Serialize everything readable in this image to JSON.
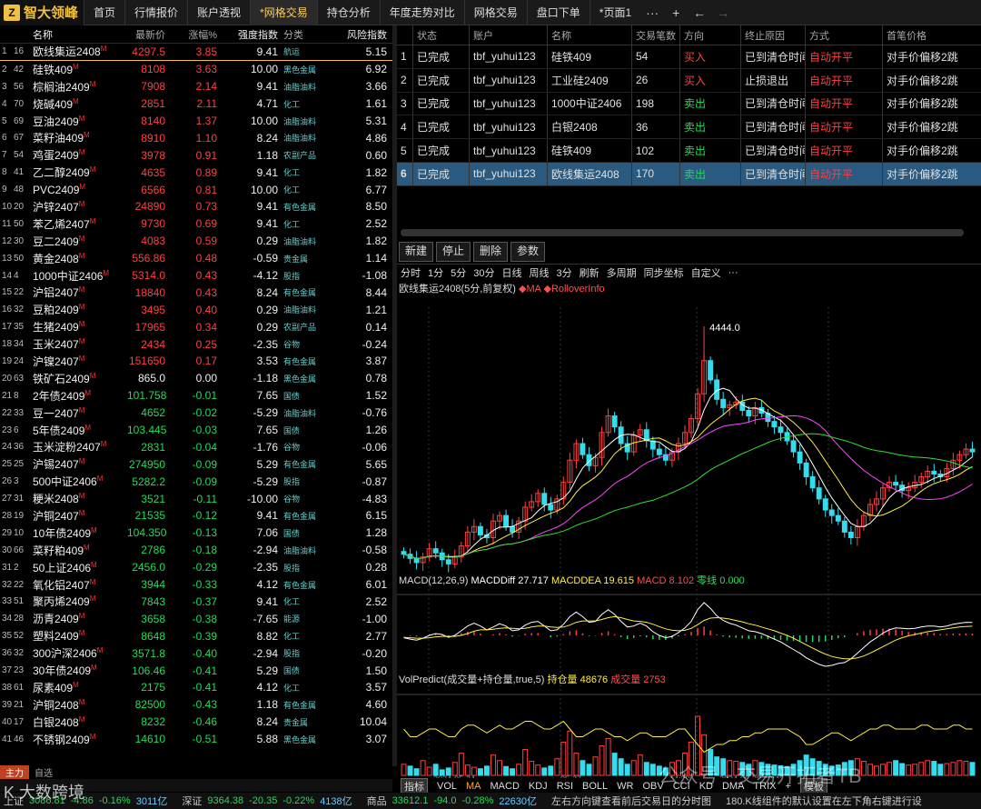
{
  "app": {
    "logo_text": "智大领峰",
    "logo_mark": "Z"
  },
  "tabs": [
    {
      "label": "首页"
    },
    {
      "label": "行情报价"
    },
    {
      "label": "账户透视"
    },
    {
      "label": "*网格交易",
      "active": true
    },
    {
      "label": "持仓分析"
    },
    {
      "label": "年度走势对比"
    },
    {
      "label": "网格交易"
    },
    {
      "label": "盘口下单"
    },
    {
      "label": "*页面1"
    }
  ],
  "tab_controls": {
    "more": "···",
    "add": "+",
    "back": "←",
    "forward": "→"
  },
  "quote_list": {
    "headers": {
      "name": "名称",
      "price": "最新价",
      "change": "涨幅%",
      "strength": "强度指数",
      "category": "分类",
      "risk": "风险指数"
    },
    "rows": [
      {
        "idx": "1",
        "code": "16",
        "name": "欧线集运2408",
        "m": "M",
        "price": "4297.5",
        "change": "3.85",
        "strength": "9.41",
        "category": "航运",
        "risk": "5.15",
        "dir": "up"
      },
      {
        "idx": "2",
        "code": "42",
        "name": "硅铁409",
        "m": "M",
        "price": "8108",
        "change": "3.63",
        "strength": "10.00",
        "category": "黑色金属",
        "risk": "6.92",
        "dir": "up"
      },
      {
        "idx": "3",
        "code": "56",
        "name": "棕榈油2409",
        "m": "M",
        "price": "7908",
        "change": "2.14",
        "strength": "9.41",
        "category": "油脂油料",
        "risk": "3.66",
        "dir": "up"
      },
      {
        "idx": "4",
        "code": "70",
        "name": "烧碱409",
        "m": "M",
        "price": "2851",
        "change": "2.11",
        "strength": "4.71",
        "category": "化工",
        "risk": "1.61",
        "dir": "up"
      },
      {
        "idx": "5",
        "code": "69",
        "name": "豆油2409",
        "m": "M",
        "price": "8140",
        "change": "1.37",
        "strength": "10.00",
        "category": "油脂油料",
        "risk": "5.31",
        "dir": "up"
      },
      {
        "idx": "6",
        "code": "67",
        "name": "菜籽油409",
        "m": "M",
        "price": "8910",
        "change": "1.10",
        "strength": "8.24",
        "category": "油脂油料",
        "risk": "4.86",
        "dir": "up"
      },
      {
        "idx": "7",
        "code": "54",
        "name": "鸡蛋2409",
        "m": "M",
        "price": "3978",
        "change": "0.91",
        "strength": "1.18",
        "category": "农副产品",
        "risk": "0.60",
        "dir": "up"
      },
      {
        "idx": "8",
        "code": "41",
        "name": "乙二醇2409",
        "m": "M",
        "price": "4635",
        "change": "0.89",
        "strength": "9.41",
        "category": "化工",
        "risk": "1.82",
        "dir": "up"
      },
      {
        "idx": "9",
        "code": "48",
        "name": "PVC2409",
        "m": "M",
        "price": "6566",
        "change": "0.81",
        "strength": "10.00",
        "category": "化工",
        "risk": "6.77",
        "dir": "up"
      },
      {
        "idx": "10",
        "code": "20",
        "name": "沪锌2407",
        "m": "M",
        "price": "24890",
        "change": "0.73",
        "strength": "9.41",
        "category": "有色金属",
        "risk": "8.50",
        "dir": "up"
      },
      {
        "idx": "11",
        "code": "50",
        "name": "苯乙烯2407",
        "m": "M",
        "price": "9730",
        "change": "0.69",
        "strength": "9.41",
        "category": "化工",
        "risk": "2.52",
        "dir": "up"
      },
      {
        "idx": "12",
        "code": "30",
        "name": "豆二2409",
        "m": "M",
        "price": "4083",
        "change": "0.59",
        "strength": "0.29",
        "category": "油脂油料",
        "risk": "1.82",
        "dir": "up"
      },
      {
        "idx": "13",
        "code": "50",
        "name": "黄金2408",
        "m": "M",
        "price": "556.86",
        "change": "0.48",
        "strength": "-0.59",
        "category": "贵金属",
        "risk": "1.14",
        "dir": "up"
      },
      {
        "idx": "14",
        "code": "4",
        "name": "1000中证2406",
        "m": "M",
        "price": "5314.0",
        "change": "0.43",
        "strength": "-4.12",
        "category": "股指",
        "risk": "-1.08",
        "dir": "up"
      },
      {
        "idx": "15",
        "code": "22",
        "name": "沪铝2407",
        "m": "M",
        "price": "18840",
        "change": "0.43",
        "strength": "8.24",
        "category": "有色金属",
        "risk": "8.44",
        "dir": "up"
      },
      {
        "idx": "16",
        "code": "32",
        "name": "豆粕2409",
        "m": "M",
        "price": "3495",
        "change": "0.40",
        "strength": "0.29",
        "category": "油脂油料",
        "risk": "1.21",
        "dir": "up"
      },
      {
        "idx": "17",
        "code": "35",
        "name": "生猪2409",
        "m": "M",
        "price": "17965",
        "change": "0.34",
        "strength": "0.29",
        "category": "农副产品",
        "risk": "0.14",
        "dir": "up"
      },
      {
        "idx": "18",
        "code": "34",
        "name": "玉米2407",
        "m": "M",
        "price": "2434",
        "change": "0.25",
        "strength": "-2.35",
        "category": "谷物",
        "risk": "-0.24",
        "dir": "up"
      },
      {
        "idx": "19",
        "code": "24",
        "name": "沪镍2407",
        "m": "M",
        "price": "151650",
        "change": "0.17",
        "strength": "3.53",
        "category": "有色金属",
        "risk": "3.87",
        "dir": "up"
      },
      {
        "idx": "20",
        "code": "63",
        "name": "铁矿石2409",
        "m": "M",
        "price": "865.0",
        "change": "0.00",
        "strength": "-1.18",
        "category": "黑色金属",
        "risk": "0.78",
        "dir": "zero"
      },
      {
        "idx": "21",
        "code": "8",
        "name": "2年债2409",
        "m": "M",
        "price": "101.758",
        "change": "-0.01",
        "strength": "7.65",
        "category": "国债",
        "risk": "1.52",
        "dir": "dn"
      },
      {
        "idx": "22",
        "code": "33",
        "name": "豆一2407",
        "m": "M",
        "price": "4652",
        "change": "-0.02",
        "strength": "-5.29",
        "category": "油脂油料",
        "risk": "-0.76",
        "dir": "dn"
      },
      {
        "idx": "23",
        "code": "6",
        "name": "5年债2409",
        "m": "M",
        "price": "103.445",
        "change": "-0.03",
        "strength": "7.65",
        "category": "国债",
        "risk": "1.26",
        "dir": "dn"
      },
      {
        "idx": "24",
        "code": "36",
        "name": "玉米淀粉2407",
        "m": "M",
        "price": "2831",
        "change": "-0.04",
        "strength": "-1.76",
        "category": "谷物",
        "risk": "-0.06",
        "dir": "dn"
      },
      {
        "idx": "25",
        "code": "25",
        "name": "沪锡2407",
        "m": "M",
        "price": "274950",
        "change": "-0.09",
        "strength": "5.29",
        "category": "有色金属",
        "risk": "5.65",
        "dir": "dn"
      },
      {
        "idx": "26",
        "code": "3",
        "name": "500中证2406",
        "m": "M",
        "price": "5282.2",
        "change": "-0.09",
        "strength": "-5.29",
        "category": "股指",
        "risk": "-0.87",
        "dir": "dn"
      },
      {
        "idx": "27",
        "code": "31",
        "name": "粳米2408",
        "m": "M",
        "price": "3521",
        "change": "-0.11",
        "strength": "-10.00",
        "category": "谷物",
        "risk": "-4.83",
        "dir": "dn"
      },
      {
        "idx": "28",
        "code": "19",
        "name": "沪铜2407",
        "m": "M",
        "price": "21535",
        "change": "-0.12",
        "strength": "9.41",
        "category": "有色金属",
        "risk": "6.15",
        "dir": "dn"
      },
      {
        "idx": "29",
        "code": "10",
        "name": "10年债2409",
        "m": "M",
        "price": "104.350",
        "change": "-0.13",
        "strength": "7.06",
        "category": "国债",
        "risk": "1.28",
        "dir": "dn"
      },
      {
        "idx": "30",
        "code": "66",
        "name": "菜籽粕409",
        "m": "M",
        "price": "2786",
        "change": "-0.18",
        "strength": "-2.94",
        "category": "油脂油料",
        "risk": "-0.58",
        "dir": "dn"
      },
      {
        "idx": "31",
        "code": "2",
        "name": "50上证2406",
        "m": "M",
        "price": "2456.0",
        "change": "-0.29",
        "strength": "-2.35",
        "category": "股指",
        "risk": "0.28",
        "dir": "dn"
      },
      {
        "idx": "32",
        "code": "22",
        "name": "氧化铝2407",
        "m": "M",
        "price": "3944",
        "change": "-0.33",
        "strength": "4.12",
        "category": "有色金属",
        "risk": "6.01",
        "dir": "dn"
      },
      {
        "idx": "33",
        "code": "51",
        "name": "聚丙烯2409",
        "m": "M",
        "price": "7843",
        "change": "-0.37",
        "strength": "9.41",
        "category": "化工",
        "risk": "2.52",
        "dir": "dn"
      },
      {
        "idx": "34",
        "code": "28",
        "name": "沥青2409",
        "m": "M",
        "price": "3658",
        "change": "-0.38",
        "strength": "-7.65",
        "category": "能源",
        "risk": "-1.00",
        "dir": "dn"
      },
      {
        "idx": "35",
        "code": "52",
        "name": "塑料2409",
        "m": "M",
        "price": "8648",
        "change": "-0.39",
        "strength": "8.82",
        "category": "化工",
        "risk": "2.77",
        "dir": "dn"
      },
      {
        "idx": "36",
        "code": "32",
        "name": "300沪深2406",
        "m": "M",
        "price": "3571.8",
        "change": "-0.40",
        "strength": "-2.94",
        "category": "股指",
        "risk": "-0.20",
        "dir": "dn"
      },
      {
        "idx": "37",
        "code": "23",
        "name": "30年债2409",
        "m": "M",
        "price": "106.46",
        "change": "-0.41",
        "strength": "5.29",
        "category": "国债",
        "risk": "1.50",
        "dir": "dn"
      },
      {
        "idx": "38",
        "code": "61",
        "name": "尿素409",
        "m": "M",
        "price": "2175",
        "change": "-0.41",
        "strength": "4.12",
        "category": "化工",
        "risk": "3.57",
        "dir": "dn"
      },
      {
        "idx": "39",
        "code": "21",
        "name": "沪铜2408",
        "m": "M",
        "price": "82500",
        "change": "-0.43",
        "strength": "1.18",
        "category": "有色金属",
        "risk": "4.60",
        "dir": "dn"
      },
      {
        "idx": "40",
        "code": "17",
        "name": "白银2408",
        "m": "M",
        "price": "8232",
        "change": "-0.46",
        "strength": "8.24",
        "category": "贵金属",
        "risk": "10.04",
        "dir": "dn"
      },
      {
        "idx": "41",
        "code": "46",
        "name": "不锈钢2409",
        "m": "M",
        "price": "14610",
        "change": "-0.51",
        "strength": "5.88",
        "category": "黑色金属",
        "risk": "3.07",
        "dir": "dn"
      }
    ]
  },
  "left_tabs": {
    "main": "主力",
    "other": "自选"
  },
  "orders": {
    "headers": {
      "status": "状态",
      "account": "账户",
      "name": "名称",
      "count": "交易笔数",
      "direction": "方向",
      "stop_reason": "终止原因",
      "mode": "方式",
      "first_price": "首笔价格"
    },
    "rows": [
      {
        "idx": "1",
        "status": "已完成",
        "account": "tbf_yuhui123",
        "name": "硅铁409",
        "count": "54",
        "direction": "买入",
        "dir": "buy",
        "stop_reason": "已到清仓时间",
        "mode": "自动开平",
        "first_price": "对手价偏移2跳"
      },
      {
        "idx": "2",
        "status": "已完成",
        "account": "tbf_yuhui123",
        "name": "工业硅2409",
        "count": "26",
        "direction": "买入",
        "dir": "buy",
        "stop_reason": "止损退出",
        "mode": "自动开平",
        "first_price": "对手价偏移2跳"
      },
      {
        "idx": "3",
        "status": "已完成",
        "account": "tbf_yuhui123",
        "name": "1000中证2406",
        "count": "198",
        "direction": "卖出",
        "dir": "sell",
        "stop_reason": "已到清仓时间",
        "mode": "自动开平",
        "first_price": "对手价偏移2跳"
      },
      {
        "idx": "4",
        "status": "已完成",
        "account": "tbf_yuhui123",
        "name": "白银2408",
        "count": "36",
        "direction": "卖出",
        "dir": "sell",
        "stop_reason": "已到清仓时间",
        "mode": "自动开平",
        "first_price": "对手价偏移2跳"
      },
      {
        "idx": "5",
        "status": "已完成",
        "account": "tbf_yuhui123",
        "name": "硅铁409",
        "count": "102",
        "direction": "卖出",
        "dir": "sell",
        "stop_reason": "已到清仓时间",
        "mode": "自动开平",
        "first_price": "对手价偏移2跳"
      },
      {
        "idx": "6",
        "status": "已完成",
        "account": "tbf_yuhui123",
        "name": "欧线集运2408",
        "count": "170",
        "direction": "卖出",
        "dir": "sell",
        "stop_reason": "已到清仓时间",
        "mode": "自动开平",
        "first_price": "对手价偏移2跳",
        "selected": true
      }
    ]
  },
  "order_buttons": {
    "new": "新建",
    "stop": "停止",
    "delete": "删除",
    "params": "参数"
  },
  "chart_periods": [
    "分时",
    "1分",
    "5分",
    "30分",
    "日线",
    "周线",
    "3分",
    "刷新",
    "多周期",
    "同步坐标",
    "自定义",
    "···"
  ],
  "chart_title": {
    "symbol": "欧线集运2408(5分,前复权)",
    "ma": "MA",
    "rollover": "RolloverInfo"
  },
  "macd_label": {
    "params": "MACD(12,26,9)",
    "diff": "MACDDiff 27.717",
    "dea": "MACDDEA 19.615",
    "macd": "MACD 8.102",
    "zero": "零线 0.000"
  },
  "vol_label": {
    "name": "VolPredict(成交量+持仓量,true,5)",
    "oi": "持仓量 48676",
    "vol": "成交量 2753"
  },
  "indicators": [
    "指标",
    "VOL",
    "MA",
    "MACD",
    "KDJ",
    "RSI",
    "BOLL",
    "WR",
    "OBV",
    "CCI",
    "KD",
    "DMA",
    "TRIX",
    "+",
    "模板"
  ],
  "status_bar": {
    "sh_label": "上证",
    "sh_val": "3086.81",
    "sh_chg": "-4.86",
    "sh_pct": "-0.16%",
    "sh_amt": "3011亿",
    "sz_label": "深证",
    "sz_val": "9364.38",
    "sz_chg": "-20.35",
    "sz_pct": "-0.22%",
    "sz_amt": "4138亿",
    "com_label": "商品",
    "com_val": "33612.1",
    "com_chg": "-94.0",
    "com_pct": "-0.28%",
    "com_amt": "22630亿",
    "hint": "左右方向键查看前后交易日的分时图",
    "hint2": "180.K线组件的默认设置在左下角右键进行设"
  },
  "watermarks": {
    "main": "公众号 · 交易开拓者TB",
    "corner": "K 大数跨境"
  },
  "chart_data": {
    "type": "candlestick",
    "title": "欧线集运2408(5分,前复权)",
    "ylabel": "",
    "xlabel": "",
    "annotation": {
      "label": "4444.0",
      "value": 4444.0
    },
    "x_ticks": [
      "2024-05-24",
      "05-27",
      "14:30",
      "2024-05-28 10:45"
    ],
    "ylim": [
      3560,
      4480
    ],
    "close_series": [
      3620,
      3605,
      3590,
      3610,
      3640,
      3625,
      3600,
      3585,
      3610,
      3650,
      3700,
      3720,
      3690,
      3680,
      3740,
      3760,
      3720,
      3700,
      3740,
      3790,
      3810,
      3840,
      3800,
      3780,
      3820,
      3880,
      3960,
      4020,
      3980,
      3940,
      3970,
      4060,
      4120,
      4080,
      4020,
      3990,
      4050,
      4070,
      4030,
      4000,
      3980,
      3960,
      3990,
      4020,
      4060,
      4110,
      4200,
      4320,
      4250,
      4180,
      4150,
      4160,
      4170,
      4140,
      4120,
      4150,
      4130,
      4100,
      4080,
      4060,
      4030,
      3990,
      3950,
      3900,
      3860,
      3820,
      3780,
      3760,
      3740,
      3700,
      3680,
      3720,
      3760,
      3800,
      3820,
      3860,
      3880,
      3870,
      3850,
      3860,
      3880,
      3900,
      3920,
      3910,
      3900,
      3930,
      3960,
      3980,
      4000,
      3990
    ],
    "volume_series": [
      30,
      25,
      18,
      40,
      22,
      30,
      15,
      20,
      35,
      60,
      28,
      22,
      18,
      25,
      55,
      40,
      24,
      18,
      30,
      70,
      38,
      28,
      20,
      25,
      45,
      90,
      120,
      60,
      40,
      30,
      50,
      80,
      100,
      60,
      45,
      30,
      40,
      55,
      35,
      30,
      25,
      20,
      35,
      40,
      60,
      90,
      160,
      110,
      70,
      50,
      45,
      40,
      38,
      35,
      30,
      40,
      35,
      30,
      28,
      26,
      24,
      30,
      40,
      55,
      45,
      38,
      30,
      25,
      28,
      35,
      40,
      45,
      38,
      30,
      25,
      30,
      35,
      40,
      32,
      28,
      30,
      35,
      40,
      38,
      30,
      32,
      35,
      40,
      38,
      35
    ],
    "open_interest_level": [
      62,
      60,
      60,
      61,
      62,
      62,
      61,
      60,
      60,
      62,
      63,
      63,
      62,
      61,
      62,
      63,
      62,
      62,
      63,
      64,
      64,
      63,
      62,
      62,
      63,
      64,
      62,
      60,
      60,
      61,
      62,
      62,
      61,
      60,
      60,
      59,
      60,
      61,
      61,
      60,
      60,
      60,
      61,
      62,
      62,
      60,
      58,
      56,
      57,
      58,
      58,
      59,
      59,
      60,
      60,
      61,
      61,
      62,
      62,
      62,
      62,
      61,
      60,
      58,
      58,
      59,
      60,
      61,
      61,
      60,
      59,
      60,
      61,
      62,
      62,
      63,
      63,
      62,
      62,
      62,
      62,
      63,
      63,
      62,
      62,
      62,
      63,
      63,
      62,
      62
    ],
    "macd_diff_series": [
      -5,
      -8,
      -10,
      -6,
      0,
      4,
      2,
      -4,
      0,
      10,
      20,
      26,
      20,
      12,
      18,
      25,
      20,
      10,
      12,
      22,
      28,
      30,
      20,
      10,
      12,
      24,
      40,
      50,
      40,
      28,
      30,
      45,
      55,
      45,
      30,
      18,
      20,
      26,
      20,
      8,
      0,
      -5,
      -2,
      6,
      16,
      30,
      55,
      70,
      58,
      42,
      32,
      26,
      22,
      16,
      10,
      8,
      4,
      -2,
      -8,
      -14,
      -22,
      -30,
      -38,
      -48,
      -55,
      -62,
      -66,
      -64,
      -60,
      -58,
      -50,
      -38,
      -26,
      -14,
      -5,
      5,
      12,
      16,
      15,
      14,
      15,
      18,
      20,
      20,
      18,
      20,
      24,
      26,
      28,
      27.7
    ],
    "macd_dea_series": [
      -4,
      -5,
      -6,
      -6,
      -5,
      -3,
      -2,
      -2,
      -2,
      0,
      4,
      9,
      12,
      12,
      13,
      15,
      16,
      15,
      14,
      15,
      18,
      20,
      20,
      18,
      17,
      18,
      22,
      28,
      31,
      31,
      31,
      34,
      38,
      40,
      38,
      34,
      31,
      30,
      28,
      24,
      19,
      14,
      11,
      10,
      11,
      15,
      23,
      32,
      37,
      38,
      37,
      35,
      32,
      29,
      25,
      22,
      18,
      14,
      10,
      5,
      0,
      -6,
      -13,
      -20,
      -27,
      -34,
      -40,
      -45,
      -48,
      -50,
      -50,
      -48,
      -44,
      -38,
      -31,
      -24,
      -17,
      -10,
      -5,
      -1,
      2,
      5,
      8,
      10,
      12,
      14,
      16,
      18,
      19,
      19.6
    ]
  }
}
